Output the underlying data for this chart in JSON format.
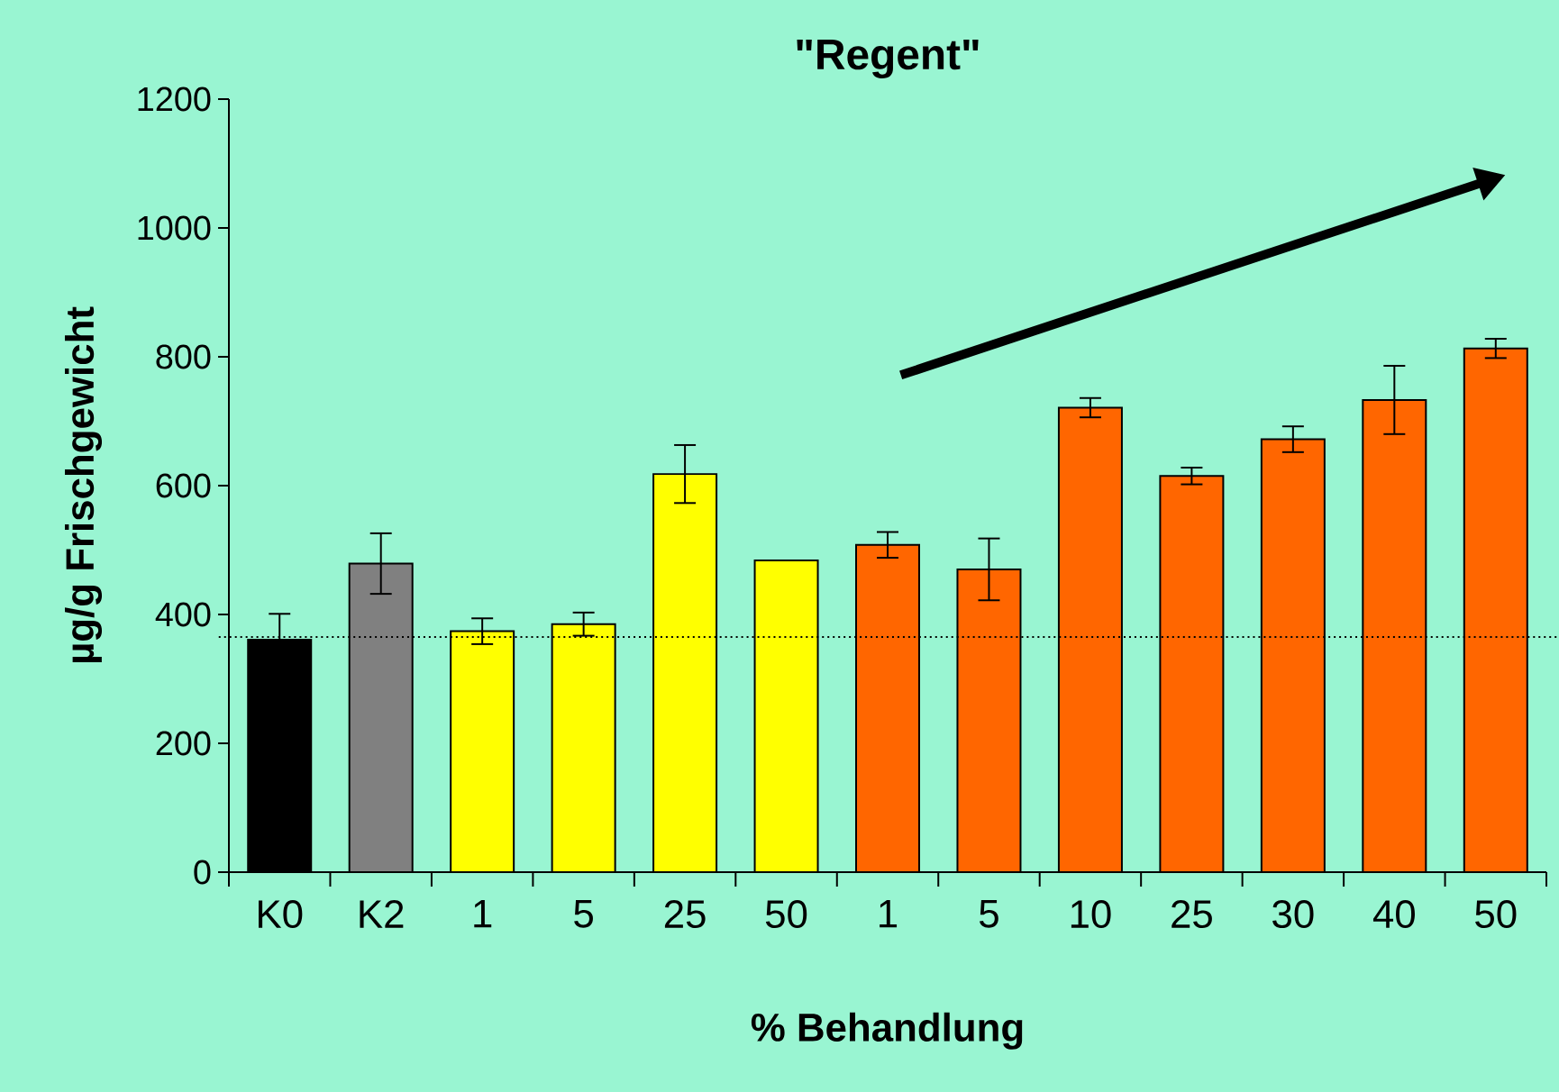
{
  "chart_data": {
    "type": "bar",
    "title": "\"Regent\"",
    "xlabel": "% Behandlung",
    "ylabel": "µg/g Frischgewicht",
    "categories": [
      "K0",
      "K2",
      "1",
      "5",
      "25",
      "50",
      "1",
      "5",
      "10",
      "25",
      "30",
      "40",
      "50"
    ],
    "values": [
      361,
      479,
      374,
      385,
      618,
      484,
      508,
      470,
      721,
      615,
      672,
      733,
      813
    ],
    "errors": [
      40,
      47,
      20,
      18,
      45,
      null,
      20,
      48,
      15,
      13,
      20,
      53,
      15
    ],
    "colors": [
      "#000000",
      "#808080",
      "#ffff00",
      "#ffff00",
      "#ffff00",
      "#ffff00",
      "#ff6600",
      "#ff6600",
      "#ff6600",
      "#ff6600",
      "#ff6600",
      "#ff6600",
      "#ff6600"
    ],
    "ylim": [
      0,
      1200
    ],
    "yticks": [
      0,
      200,
      400,
      600,
      800,
      1000,
      1200
    ],
    "ref_lines": [
      {
        "axis": "y",
        "value": 365,
        "line_style": "dotted",
        "color": "#000000"
      }
    ]
  }
}
